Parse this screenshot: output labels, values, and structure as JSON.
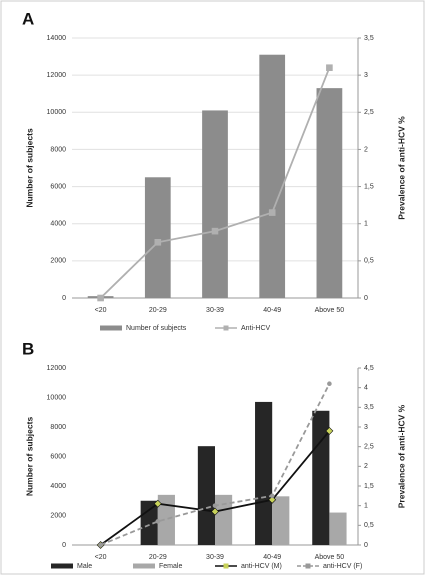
{
  "chart_data": [
    {
      "type": "bar",
      "label": "A",
      "categories": [
        "<20",
        "20-29",
        "30-39",
        "40-49",
        "Above 50"
      ],
      "ylabel": "Number of subjects",
      "y2label": "Prevalence of anti-HCV %",
      "ylim": [
        0,
        14000
      ],
      "yticks": [
        0,
        2000,
        4000,
        6000,
        8000,
        10000,
        12000,
        14000
      ],
      "y2lim": [
        0,
        3.5
      ],
      "y2ticks": [
        0,
        {
          "value": 0.5,
          "label": "0,5"
        },
        1,
        {
          "value": 1.5,
          "label": "1,5"
        },
        2,
        {
          "value": 2.5,
          "label": "2,5"
        },
        3,
        {
          "value": 3.5,
          "label": "3,5"
        }
      ],
      "grid": true,
      "series": [
        {
          "name": "Number of subjects",
          "kind": "bar",
          "color": "#8c8c8c",
          "values": [
            100,
            6500,
            10100,
            13100,
            11300
          ]
        },
        {
          "name": "Anti-HCV",
          "kind": "line",
          "axis": "y2",
          "color": "#b0b0b0",
          "marker": "square",
          "values": [
            0,
            0.75,
            0.9,
            1.15,
            3.1
          ]
        }
      ]
    },
    {
      "type": "bar",
      "label": "B",
      "categories": [
        "<20",
        "20-29",
        "30-39",
        "40-49",
        "Above 50"
      ],
      "ylabel": "Number of subjects",
      "y2label": "Prevalence of anti-HCV %",
      "ylim": [
        0,
        12000
      ],
      "yticks": [
        0,
        2000,
        4000,
        6000,
        8000,
        10000,
        12000
      ],
      "y2lim": [
        0,
        4.5
      ],
      "y2ticks": [
        0,
        {
          "value": 0.5,
          "label": "0,5"
        },
        1,
        {
          "value": 1.5,
          "label": "1,5"
        },
        2,
        {
          "value": 2.5,
          "label": "2,5"
        },
        3,
        {
          "value": 3.5,
          "label": "3,5"
        },
        4,
        {
          "value": 4.5,
          "label": "4,5"
        }
      ],
      "grid": false,
      "series": [
        {
          "name": "Male",
          "kind": "bar",
          "color": "#262626",
          "values": [
            0,
            3000,
            6700,
            9700,
            9100
          ]
        },
        {
          "name": "Female",
          "kind": "bar",
          "color": "#a8a8a8",
          "values": [
            0,
            3400,
            3400,
            3300,
            2200
          ]
        },
        {
          "name": "anti-HCV (M)",
          "kind": "line",
          "axis": "y2",
          "color": "#111111",
          "marker": "diamond",
          "marker_color": "#c8d25a",
          "values": [
            0,
            1.05,
            0.85,
            1.15,
            2.9
          ]
        },
        {
          "name": "anti-HCV (F)",
          "kind": "line",
          "axis": "y2",
          "color": "#999999",
          "dash": true,
          "marker": "dot",
          "values": [
            0,
            0.6,
            1.0,
            1.25,
            4.1
          ]
        }
      ]
    }
  ]
}
